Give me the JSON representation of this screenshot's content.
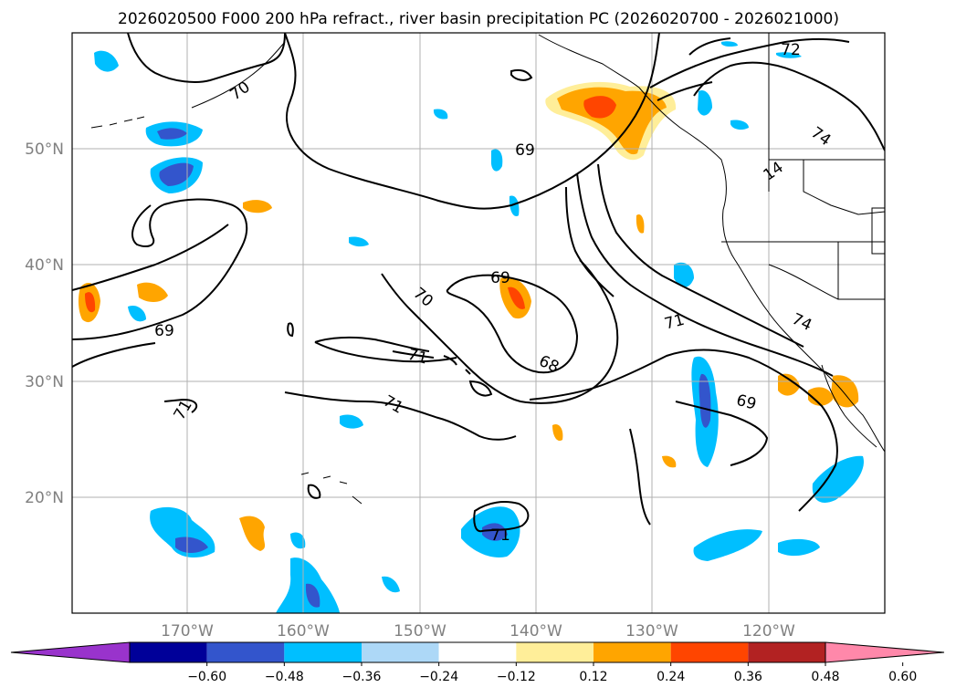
{
  "title": "2026020500 F000 200 hPa refract., river basin precipitation PC (2026020700 - 2026021000)",
  "map": {
    "lat_labels": [
      "50°N",
      "40°N",
      "30°N",
      "20°N"
    ],
    "lon_labels": [
      "170°W",
      "160°W",
      "150°W",
      "140°W",
      "130°W",
      "120°W"
    ]
  },
  "colorbar": {
    "colors": [
      "#9933cc",
      "#000099",
      "#3355cc",
      "#00bfff",
      "#add8f7",
      "#ffffff",
      "#ffee99",
      "#ffa500",
      "#ff4500",
      "#b22222",
      "#ff88aa"
    ],
    "ticks": [
      "−0.60",
      "−0.48",
      "−0.36",
      "−0.24",
      "−0.12",
      "0.12",
      "0.24",
      "0.36",
      "0.48",
      "0.60"
    ]
  },
  "contour_labels": [
    "72",
    "70",
    "74",
    "69",
    "14",
    "69",
    "70",
    "71",
    "71",
    "74",
    "69",
    "68",
    "71",
    "71",
    "69",
    "71"
  ]
}
